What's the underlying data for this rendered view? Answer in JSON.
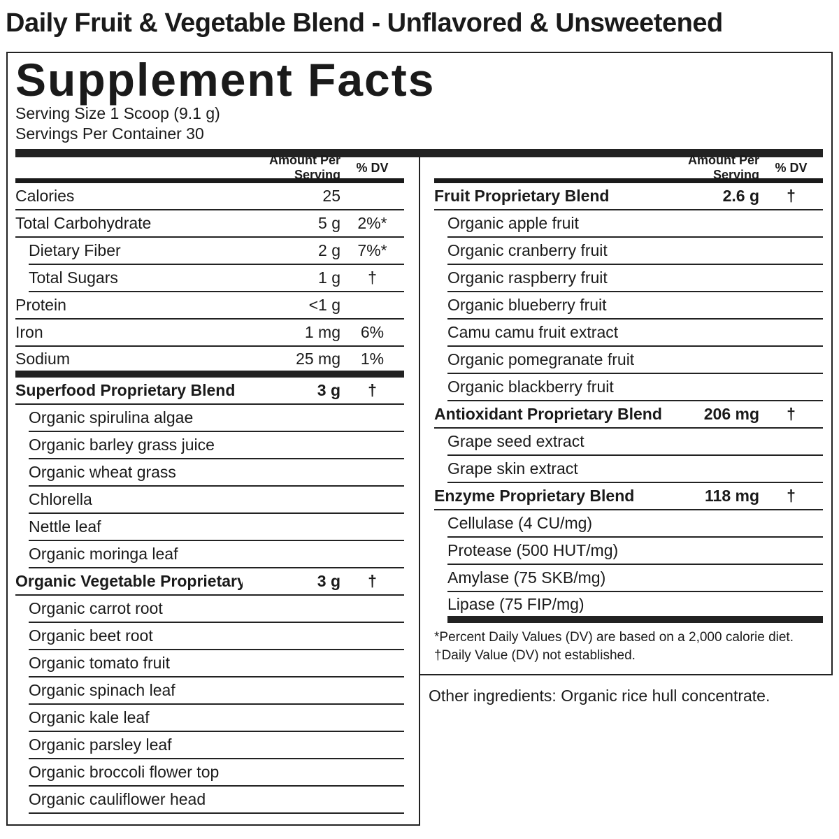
{
  "title": "Daily Fruit & Vegetable Blend - Unflavored & Unsweetened",
  "facts": {
    "heading": "Supplement Facts",
    "serving_size": "Serving Size 1 Scoop (9.1 g)",
    "servings_per_container": "Servings Per Container 30",
    "left": {
      "header": {
        "amount": "Amount Per Serving",
        "dv": "% DV"
      },
      "nutrients": [
        {
          "name": "Calories",
          "amount": "25"
        },
        {
          "name": "Total Carbohydrate",
          "amount": "5 g",
          "dv": "2%*",
          "sub": [
            {
              "name": "Dietary Fiber",
              "amount": "2 g",
              "dv": "7%*"
            },
            {
              "name": "Total Sugars",
              "amount": "1 g",
              "dv": "†"
            }
          ]
        },
        {
          "name": "Protein",
          "amount": "<1 g"
        },
        {
          "name": "Iron",
          "amount": "1 mg",
          "dv": "6%"
        },
        {
          "name": "Sodium",
          "amount": "25 mg",
          "dv": "1%"
        }
      ],
      "blends": [
        {
          "name": "Superfood Proprietary Blend",
          "amount": "3 g",
          "dv": "†",
          "ingredients": [
            "Organic spirulina algae",
            "Organic barley grass juice",
            "Organic wheat grass",
            "Chlorella",
            "Nettle leaf",
            "Organic moringa leaf"
          ]
        },
        {
          "name": "Organic Vegetable Proprietary Blend",
          "amount": "3 g",
          "dv": "†",
          "ingredients": [
            "Organic carrot root",
            "Organic beet root",
            "Organic tomato fruit",
            "Organic spinach leaf",
            "Organic kale leaf",
            "Organic parsley leaf",
            "Organic broccoli flower top",
            "Organic cauliflower head"
          ]
        }
      ]
    },
    "right": {
      "header": {
        "amount": "Amount Per Serving",
        "dv": "% DV"
      },
      "blends": [
        {
          "name": "Fruit Proprietary Blend",
          "amount": "2.6 g",
          "dv": "†",
          "ingredients": [
            "Organic apple fruit",
            "Organic cranberry fruit",
            "Organic raspberry fruit",
            "Organic blueberry fruit",
            "Camu camu fruit extract",
            "Organic pomegranate fruit",
            "Organic blackberry fruit"
          ]
        },
        {
          "name": "Antioxidant Proprietary Blend",
          "amount": "206 mg",
          "dv": "†",
          "ingredients": [
            "Grape seed extract",
            "Grape skin extract"
          ]
        },
        {
          "name": "Enzyme Proprietary Blend",
          "amount": "118 mg",
          "dv": "†",
          "ingredients": [
            "Cellulase (4 CU/mg)",
            "Protease (500 HUT/mg)",
            "Amylase (75 SKB/mg)",
            "Lipase (75 FIP/mg)"
          ]
        }
      ],
      "footnotes": [
        "*Percent Daily Values (DV) are based on a 2,000 calorie diet.",
        "†Daily Value (DV) not established."
      ]
    },
    "other_ingredients": "Other ingredients: Organic rice hull concentrate."
  }
}
